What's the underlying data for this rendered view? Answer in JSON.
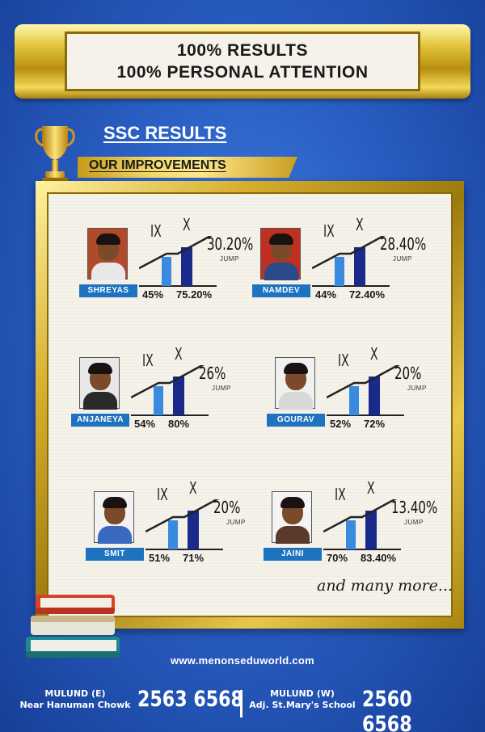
{
  "banner": {
    "line1": "100% RESULTS",
    "line2": "100% PERSONAL ATTENTION"
  },
  "heading": {
    "title": "SSC RESULTS",
    "subtitle": "OUR IMPROVEMENTS"
  },
  "grade_labels": {
    "from": "IX",
    "to": "X"
  },
  "jump_word": "JUMP",
  "students": [
    {
      "name": "SHREYAS",
      "ix": "45%",
      "x": "75.20%",
      "jump": "30.20%",
      "shirt": "#e8e8e8",
      "bg": "#b04a2a"
    },
    {
      "name": "NAMDEV",
      "ix": "44%",
      "x": "72.40%",
      "jump": "28.40%",
      "shirt": "#2a4a8a",
      "bg": "#c03020"
    },
    {
      "name": "ANJANEYA",
      "ix": "54%",
      "x": "80%",
      "jump": "26%",
      "shirt": "#2a2a2a",
      "bg": "#e8e8e8"
    },
    {
      "name": "GOURAV",
      "ix": "52%",
      "x": "72%",
      "jump": "20%",
      "shirt": "#d8d8d8",
      "bg": "#f0f0f0"
    },
    {
      "name": "SMIT",
      "ix": "51%",
      "x": "71%",
      "jump": "20%",
      "shirt": "#3a6ac0",
      "bg": "#f2f2f2"
    },
    {
      "name": "JAINI",
      "ix": "70%",
      "x": "83.40%",
      "jump": "13.40%",
      "shirt": "#5a3a2a",
      "bg": "#f4f4f4"
    }
  ],
  "more_text": "and many more...",
  "website": "www.menonseduworld.com",
  "footer": {
    "branch1_name": "MULUND (E)",
    "branch1_address": "Near Hanuman Chowk",
    "branch1_phone": "2563 6568",
    "branch2_name": "MULUND (W)",
    "branch2_address": "Adj. St.Mary's School",
    "branch2_phone": "2560 6568"
  },
  "colors": {
    "name_bar": "#1e73c0",
    "bar_ix": "#3a8ae0",
    "bar_x": "#1a2a8a"
  }
}
